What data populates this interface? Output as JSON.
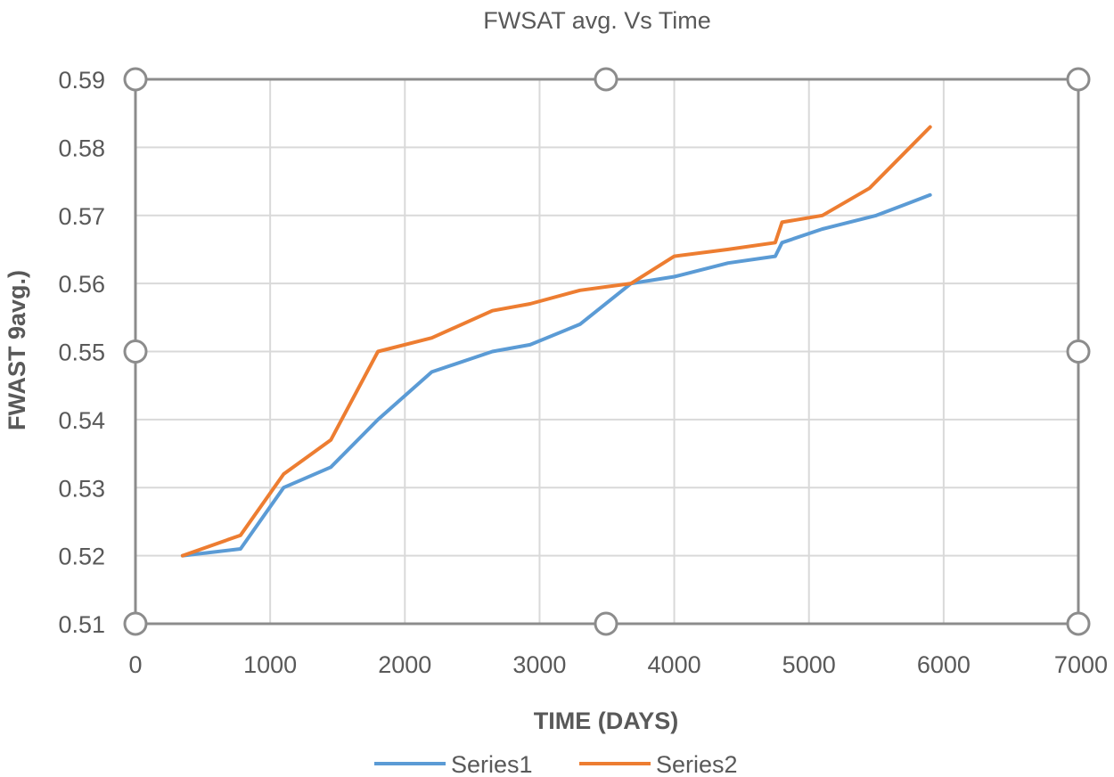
{
  "chart_data": {
    "type": "line",
    "title": "FWSAT avg. Vs Time",
    "xlabel": "TIME (DAYS)",
    "ylabel": "FWAST 9avg.)",
    "xlim": [
      0,
      7000
    ],
    "ylim": [
      0.51,
      0.59
    ],
    "x_ticks": [
      0,
      1000,
      2000,
      3000,
      4000,
      5000,
      6000,
      7000
    ],
    "y_ticks": [
      0.51,
      0.52,
      0.53,
      0.54,
      0.55,
      0.56,
      0.57,
      0.58,
      0.59
    ],
    "x_tick_labels": [
      "0",
      "1000",
      "2000",
      "3000",
      "4000",
      "5000",
      "6000",
      "7000"
    ],
    "y_tick_labels": [
      "0.51",
      "0.52",
      "0.53",
      "0.54",
      "0.55",
      "0.56",
      "0.57",
      "0.58",
      "0.59"
    ],
    "grid": true,
    "legend_position": "bottom",
    "series": [
      {
        "name": "Series1",
        "color": "#5b9bd5",
        "points": [
          [
            350,
            0.52
          ],
          [
            780,
            0.521
          ],
          [
            1100,
            0.53
          ],
          [
            1450,
            0.533
          ],
          [
            1800,
            0.54
          ],
          [
            2200,
            0.547
          ],
          [
            2650,
            0.55
          ],
          [
            2930,
            0.551
          ],
          [
            3300,
            0.554
          ],
          [
            3680,
            0.56
          ],
          [
            4000,
            0.561
          ],
          [
            4400,
            0.563
          ],
          [
            4750,
            0.564
          ],
          [
            4800,
            0.566
          ],
          [
            5100,
            0.568
          ],
          [
            5500,
            0.57
          ],
          [
            5900,
            0.573
          ]
        ]
      },
      {
        "name": "Series2",
        "color": "#ed7d31",
        "points": [
          [
            350,
            0.52
          ],
          [
            780,
            0.523
          ],
          [
            1100,
            0.532
          ],
          [
            1450,
            0.537
          ],
          [
            1800,
            0.55
          ],
          [
            2200,
            0.552
          ],
          [
            2650,
            0.556
          ],
          [
            2930,
            0.557
          ],
          [
            3300,
            0.559
          ],
          [
            3680,
            0.56
          ],
          [
            4000,
            0.564
          ],
          [
            4400,
            0.565
          ],
          [
            4750,
            0.566
          ],
          [
            4800,
            0.569
          ],
          [
            5100,
            0.57
          ],
          [
            5450,
            0.574
          ],
          [
            5900,
            0.583
          ]
        ]
      }
    ]
  }
}
